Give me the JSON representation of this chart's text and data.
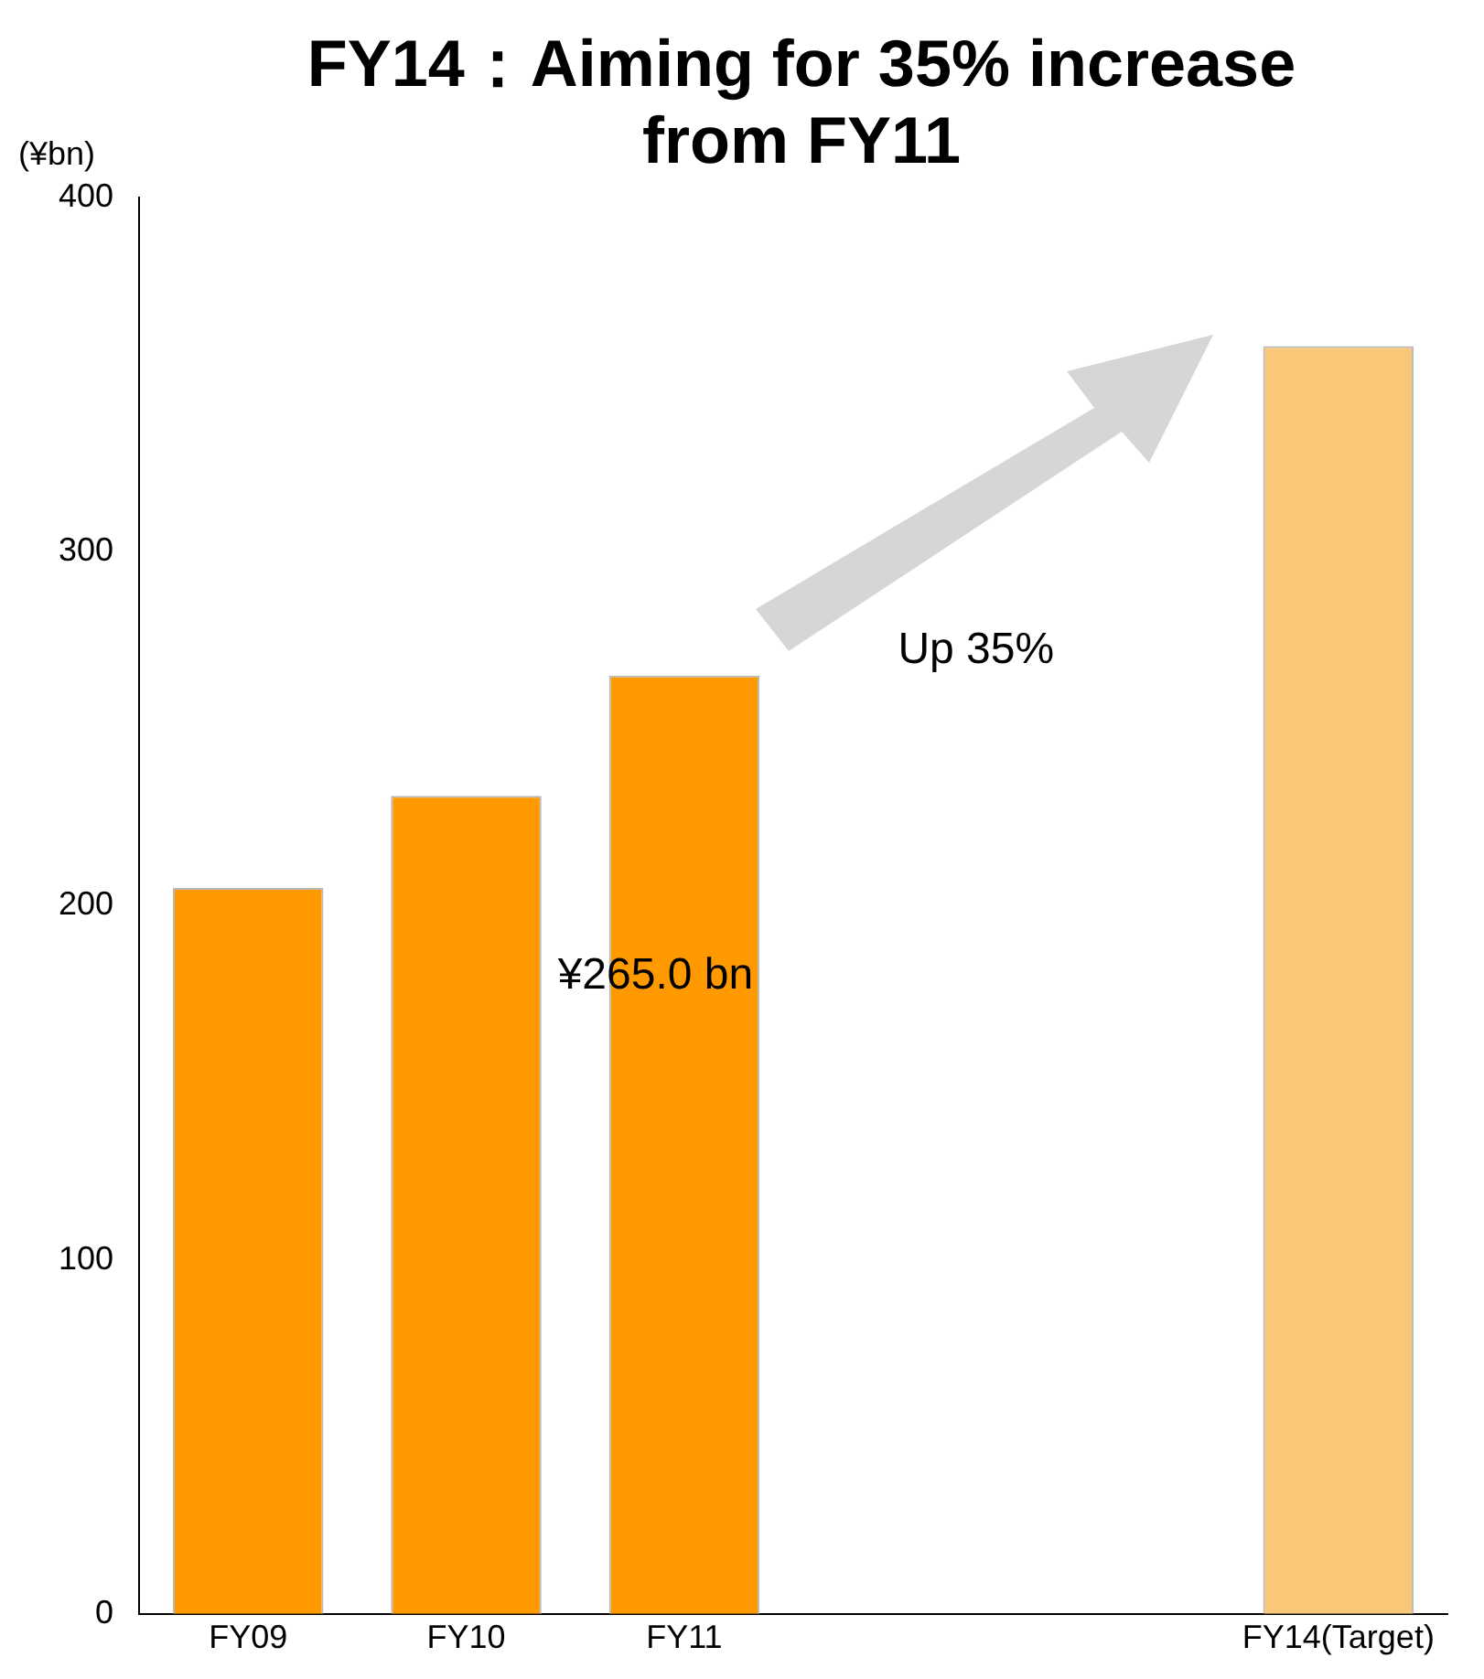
{
  "chart_data": {
    "type": "bar",
    "title": "FY14：Aiming for 35% increase from FY11",
    "ylabel": "(¥bn)",
    "categories": [
      "FY09",
      "FY10",
      "FY11",
      null,
      null,
      "FY14(Target)"
    ],
    "values": [
      205,
      231,
      265,
      null,
      null,
      358
    ],
    "colors": [
      "#ff9900",
      "#ff9900",
      "#ff9900",
      "#ff9900",
      "#ff9900",
      "#f8c878"
    ],
    "ylim": [
      0,
      400
    ],
    "yticks": [
      0,
      100,
      200,
      300,
      400
    ],
    "grid": false,
    "legend": false,
    "annotations": [
      "Up 35%",
      "¥265.0 bn"
    ]
  }
}
